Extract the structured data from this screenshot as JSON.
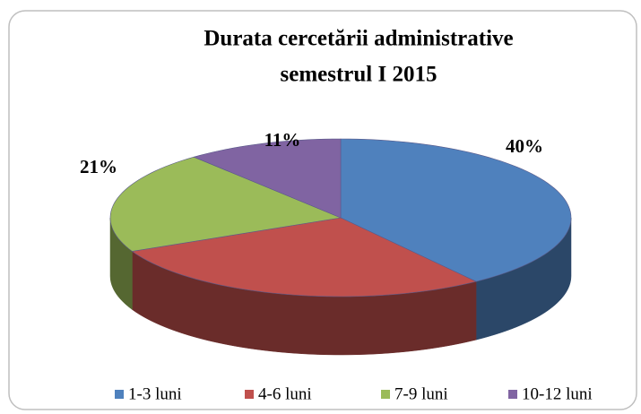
{
  "chart_data": {
    "type": "pie3d",
    "title": "Durata cercetării administrative",
    "subtitle": "semestrul I 2015",
    "categories": [
      "1-3 luni",
      "4-6 luni",
      "7-9 luni",
      "10-12 luni"
    ],
    "values": [
      40,
      28,
      21,
      11
    ],
    "value_labels": [
      "40%",
      null,
      "21%",
      "11%"
    ],
    "colors": [
      "#4f81bd",
      "#c0504d",
      "#9bbb59",
      "#8064a2"
    ],
    "legend": "bottom"
  }
}
